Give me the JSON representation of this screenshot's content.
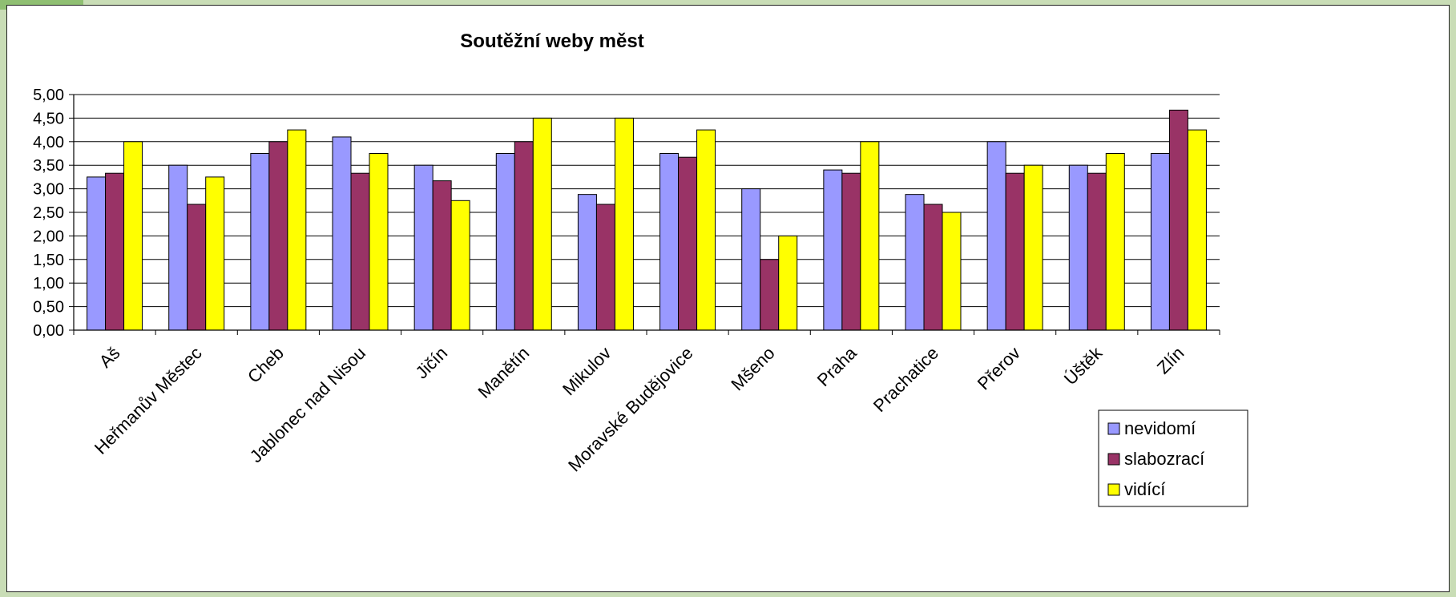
{
  "chart_data": {
    "type": "bar",
    "title": "Soutěžní weby měst",
    "categories": [
      "Aš",
      "Heřmanův Městec",
      "Cheb",
      "Jablonec nad Nisou",
      "Jičín",
      "Manětín",
      "Mikulov",
      "Moravské Budějovice",
      "Mšeno",
      "Praha",
      "Prachatice",
      "Přerov",
      "Úštěk",
      "Zlín"
    ],
    "series": [
      {
        "name": "nevidomí",
        "color": "#9999ff",
        "values": [
          3.25,
          3.5,
          3.75,
          4.1,
          3.5,
          3.75,
          2.88,
          3.75,
          3.0,
          3.4,
          2.88,
          4.0,
          3.5,
          3.75
        ]
      },
      {
        "name": "slabozrací",
        "color": "#993366",
        "values": [
          3.33,
          2.67,
          4.0,
          3.33,
          3.17,
          4.0,
          2.67,
          3.67,
          1.5,
          3.33,
          2.67,
          3.33,
          3.33,
          4.67
        ]
      },
      {
        "name": "vidící",
        "color": "#ffff00",
        "values": [
          4.0,
          3.25,
          4.25,
          3.75,
          2.75,
          4.5,
          4.5,
          4.25,
          2.0,
          4.0,
          2.5,
          3.5,
          3.75,
          4.25
        ]
      }
    ],
    "ylim": [
      0,
      5
    ],
    "yticks": [
      "0,00",
      "0,50",
      "1,00",
      "1,50",
      "2,00",
      "2,50",
      "3,00",
      "3,50",
      "4,00",
      "4,50",
      "5,00"
    ],
    "grid": true,
    "legend": "bottom-right"
  }
}
